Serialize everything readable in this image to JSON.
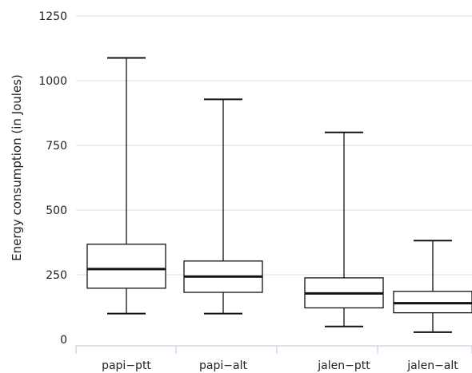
{
  "chart_data": {
    "type": "boxplot",
    "title": "",
    "xlabel": "",
    "ylabel": "Energy consumption (in Joules)",
    "ylim": [
      0,
      1250
    ],
    "yticks": [
      0,
      250,
      500,
      750,
      1000,
      1250
    ],
    "grid": true,
    "categories": [
      "papi−ptt",
      "papi−alt",
      "jalen−ptt",
      "jalen−alt"
    ],
    "boxes": [
      {
        "category": "papi−ptt",
        "min": 100,
        "q1": 198,
        "median": 272,
        "q3": 368,
        "max": 1088
      },
      {
        "category": "papi−alt",
        "min": 100,
        "q1": 182,
        "median": 243,
        "q3": 303,
        "max": 928
      },
      {
        "category": "jalen−ptt",
        "min": 50,
        "q1": 122,
        "median": 178,
        "q3": 238,
        "max": 800
      },
      {
        "category": "jalen−alt",
        "min": 28,
        "q1": 103,
        "median": 140,
        "q3": 186,
        "max": 382
      }
    ]
  }
}
